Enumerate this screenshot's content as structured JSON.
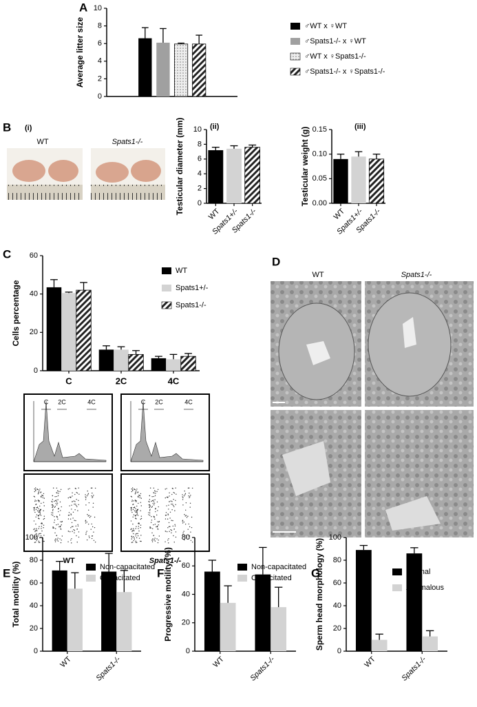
{
  "chart_data": [
    {
      "type": "bar",
      "panel": "A",
      "ylabel": "Average litter size",
      "ylim": [
        0,
        10
      ],
      "yticks": [
        0,
        2,
        4,
        6,
        8,
        10
      ],
      "series": [
        {
          "name": "♂WT x ♀WT",
          "fill": "#000000",
          "values": [
            6.6
          ],
          "errors": [
            1.2
          ]
        },
        {
          "name": "♂Spats1-/- x ♀WT",
          "fill": "#a0a0a0",
          "values": [
            6.1
          ],
          "errors": [
            1.6
          ]
        },
        {
          "name": "♂WT x ♀Spats1-/-",
          "fill": "dots",
          "values": [
            5.95
          ],
          "errors": [
            0.1
          ]
        },
        {
          "name": "♂Spats1-/- x ♀Spats1-/-",
          "fill": "hatch",
          "values": [
            5.95
          ],
          "errors": [
            1.0
          ]
        }
      ]
    },
    {
      "type": "bar",
      "title": "(ii)",
      "ylabel": "Testicular diameter (mm)",
      "ylim": [
        0,
        10
      ],
      "yticks": [
        0,
        2,
        4,
        6,
        8,
        10
      ],
      "categories": [
        "WT",
        "Spats1+/-",
        "Spats1-/-"
      ],
      "values": [
        7.2,
        7.4,
        7.6
      ],
      "errors": [
        0.4,
        0.4,
        0.3
      ],
      "fills": [
        "#000000",
        "#d3d3d3",
        "hatch"
      ]
    },
    {
      "type": "bar",
      "title": "(iii)",
      "ylabel": "Testicular weight (g)",
      "ylim": [
        0,
        0.15
      ],
      "yticks": [
        {
          "value": 0,
          "label": "0.00"
        },
        {
          "value": 0.05,
          "label": "0.05"
        },
        {
          "value": 0.1,
          "label": "0.10"
        },
        {
          "value": 0.15,
          "label": "0.15"
        }
      ],
      "categories": [
        "WT",
        "Spats1+/-",
        "Spats1-/-"
      ],
      "values": [
        0.09,
        0.095,
        0.09
      ],
      "errors": [
        0.01,
        0.01,
        0.01
      ],
      "fills": [
        "#000000",
        "#d3d3d3",
        "hatch"
      ]
    },
    {
      "type": "bar",
      "panel": "C",
      "ylabel": "Cells percentage",
      "ylim": [
        0,
        60
      ],
      "yticks": [
        0,
        20,
        40,
        60
      ],
      "categories": [
        "C",
        "2C",
        "4C"
      ],
      "series": [
        {
          "name": "WT",
          "fill": "#000000",
          "values": [
            43.5,
            11,
            6.5
          ],
          "errors": [
            4,
            2,
            1
          ]
        },
        {
          "name": "Spats1+/-",
          "fill": "#d3d3d3",
          "values": [
            40.5,
            11,
            6
          ],
          "errors": [
            0.5,
            1.5,
            2.5
          ]
        },
        {
          "name": "Spats1-/-",
          "fill": "hatch",
          "values": [
            42,
            8.5,
            7.5
          ],
          "errors": [
            4,
            2,
            1.5
          ]
        }
      ]
    },
    {
      "type": "bar",
      "panel": "E",
      "ylabel": "Total motility (%)",
      "ylim": [
        0,
        100
      ],
      "yticks": [
        0,
        20,
        40,
        60,
        80,
        100
      ],
      "categories": [
        "WT",
        "Spats1-/-"
      ],
      "series": [
        {
          "name": "Non-capacitated",
          "fill": "#000000",
          "values": [
            71,
            70
          ],
          "errors": [
            8,
            16
          ]
        },
        {
          "name": "Capacitated",
          "fill": "#d3d3d3",
          "values": [
            55,
            52
          ],
          "errors": [
            14,
            19
          ]
        }
      ]
    },
    {
      "type": "bar",
      "panel": "F",
      "ylabel": "Progressive motility (%)",
      "ylim": [
        0,
        80
      ],
      "yticks": [
        0,
        20,
        40,
        60,
        80
      ],
      "categories": [
        "WT",
        "Spats1-/-"
      ],
      "series": [
        {
          "name": "Non-capacitated",
          "fill": "#000000",
          "values": [
            56,
            54
          ],
          "errors": [
            8,
            19
          ]
        },
        {
          "name": "Capacitated",
          "fill": "#d3d3d3",
          "values": [
            34,
            31
          ],
          "errors": [
            12,
            14
          ]
        }
      ]
    },
    {
      "type": "bar",
      "panel": "G",
      "ylabel": "Sperm head morphology (%)",
      "ylim": [
        0,
        100
      ],
      "yticks": [
        0,
        20,
        40,
        60,
        80,
        100
      ],
      "categories": [
        "WT",
        "Spats1-/-"
      ],
      "series": [
        {
          "name": "Normal",
          "fill": "#000000",
          "values": [
            89,
            86
          ],
          "errors": [
            4,
            5
          ]
        },
        {
          "name": "Anomalous",
          "fill": "#d3d3d3",
          "values": [
            10,
            13
          ],
          "errors": [
            5,
            5
          ]
        }
      ]
    }
  ],
  "figure": {
    "B": {
      "panel": "B",
      "subpanel": "(i)",
      "labels": [
        "WT",
        "Spats1-/-"
      ]
    },
    "C": {
      "peaks": [
        "C",
        "2C",
        "4C"
      ],
      "labels": [
        "WT",
        "Spats1-/-"
      ]
    },
    "D": {
      "panel": "D",
      "labels": [
        "WT",
        "Spats1-/-"
      ]
    }
  }
}
